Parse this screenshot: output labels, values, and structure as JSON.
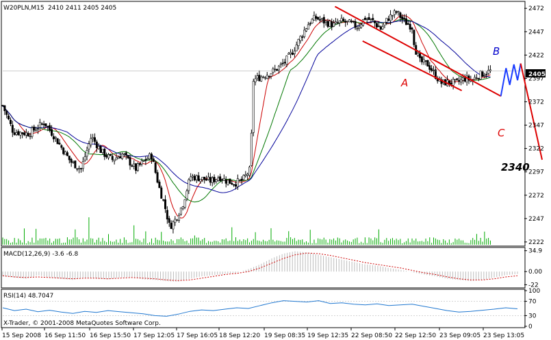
{
  "header": {
    "symbol_label": "W20PLN,M15",
    "ohlc_label": "2410 2411 2405 2405",
    "macd_label": "MACD(12,26,9) -3.6 -6.8",
    "rsi_label": "RSI(14) 48.7047",
    "copyright": "X-Trader, © 2001-2008 MetaQuotes Software Corp."
  },
  "annotations": {
    "a": "A",
    "b": "B",
    "c": "C",
    "target": "2340"
  },
  "colors": {
    "background": "#ffffff",
    "candle": "#000000",
    "ma_fast": "#cc0000",
    "ma_mid": "#007700",
    "ma_slow": "#000099",
    "annotation_red": "#dd0000",
    "annotation_blue": "#0000cc",
    "wave_blue": "#1a3cff",
    "volume": "#00aa00",
    "rsi": "#1f77d0",
    "macd_hist": "#bbbbbb",
    "macd_signal": "#cc0000",
    "current_price_bg": "#000000"
  },
  "chart_data": [
    {
      "type": "candlestick",
      "panel": "price",
      "title": "W20PLN,M15",
      "y_ticks": [
        2472,
        2447,
        2422,
        2397,
        2372,
        2347,
        2322,
        2297,
        2272,
        2247,
        2222
      ],
      "ylim": [
        2219,
        2478
      ],
      "current_price": 2405,
      "current_price_label": "2405",
      "x_tick_labels": [
        "15 Sep 2008",
        "16 Sep 11:50",
        "16 Sep 15:50",
        "17 Sep 12:05",
        "17 Sep 16:05",
        "18 Sep 12:20",
        "19 Sep 08:35",
        "19 Sep 12:35",
        "22 Sep 08:50",
        "22 Sep 12:50",
        "23 Sep 09:05",
        "23 Sep 13:05"
      ],
      "close_path": [
        [
          0,
          2368
        ],
        [
          0.02,
          2340
        ],
        [
          0.05,
          2338
        ],
        [
          0.08,
          2350
        ],
        [
          0.1,
          2334
        ],
        [
          0.13,
          2308
        ],
        [
          0.15,
          2300
        ],
        [
          0.17,
          2335
        ],
        [
          0.19,
          2318
        ],
        [
          0.21,
          2310
        ],
        [
          0.23,
          2316
        ],
        [
          0.255,
          2300
        ],
        [
          0.27,
          2308
        ],
        [
          0.285,
          2315
        ],
        [
          0.3,
          2280
        ],
        [
          0.31,
          2262
        ],
        [
          0.32,
          2238
        ],
        [
          0.33,
          2245
        ],
        [
          0.345,
          2262
        ],
        [
          0.36,
          2292
        ],
        [
          0.38,
          2290
        ],
        [
          0.4,
          2287
        ],
        [
          0.415,
          2292
        ],
        [
          0.43,
          2287
        ],
        [
          0.445,
          2285
        ],
        [
          0.46,
          2288
        ],
        [
          0.475,
          2300
        ],
        [
          0.48,
          2395
        ],
        [
          0.5,
          2400
        ],
        [
          0.52,
          2405
        ],
        [
          0.54,
          2414
        ],
        [
          0.555,
          2425
        ],
        [
          0.57,
          2440
        ],
        [
          0.585,
          2455
        ],
        [
          0.595,
          2460
        ],
        [
          0.6,
          2462
        ],
        [
          0.615,
          2458
        ],
        [
          0.635,
          2454
        ],
        [
          0.65,
          2458
        ],
        [
          0.665,
          2456
        ],
        [
          0.68,
          2452
        ],
        [
          0.695,
          2462
        ],
        [
          0.71,
          2458
        ],
        [
          0.725,
          2450
        ],
        [
          0.74,
          2462
        ],
        [
          0.755,
          2468
        ],
        [
          0.77,
          2458
        ],
        [
          0.785,
          2452
        ],
        [
          0.79,
          2430
        ],
        [
          0.8,
          2415
        ],
        [
          0.815,
          2412
        ],
        [
          0.83,
          2400
        ],
        [
          0.84,
          2392
        ],
        [
          0.855,
          2393
        ],
        [
          0.87,
          2392
        ],
        [
          0.885,
          2397
        ],
        [
          0.9,
          2395
        ],
        [
          0.91,
          2400
        ],
        [
          0.92,
          2402
        ],
        [
          0.935,
          2405
        ]
      ],
      "moving_averages": [
        "red",
        "green",
        "blue"
      ],
      "annotations": [
        {
          "text": "A",
          "price": 2390,
          "color": "red"
        },
        {
          "text": "B",
          "price": 2428,
          "color": "blue"
        },
        {
          "text": "C",
          "price": 2337,
          "color": "red"
        },
        {
          "text": "2340",
          "price": 2306,
          "color": "black"
        }
      ]
    },
    {
      "type": "bar",
      "panel": "volume",
      "series_name": "volume",
      "note": "green volume bars along the bottom of the price panel"
    },
    {
      "type": "bar",
      "panel": "macd",
      "title": "MACD(12,26,9) -3.6 -6.8",
      "y_ticks": [
        34.9,
        0.0,
        -22
      ],
      "ylim": [
        -25,
        38
      ],
      "series": [
        {
          "name": "MACD",
          "values": [
            -8,
            -10,
            -12,
            -6,
            -10,
            -12,
            -14,
            -10,
            -12,
            -13,
            -10,
            -9,
            -13,
            -14,
            -16,
            -17,
            -12,
            -8,
            -6,
            -4,
            -2,
            4,
            12,
            22,
            30,
            34,
            32,
            28,
            24,
            20,
            16,
            12,
            10,
            6,
            3,
            -1,
            -5,
            -8,
            -12,
            -14,
            -16,
            -14,
            -10,
            -6,
            -4
          ]
        },
        {
          "name": "Signal",
          "values": [
            -7,
            -9,
            -10,
            -9,
            -10,
            -11,
            -12,
            -11,
            -11,
            -12,
            -11,
            -10,
            -11,
            -12,
            -14,
            -15,
            -14,
            -11,
            -8,
            -5,
            -3,
            0,
            6,
            14,
            22,
            28,
            31,
            30,
            27,
            23,
            19,
            15,
            12,
            9,
            6,
            2,
            -2,
            -5,
            -9,
            -12,
            -14,
            -14,
            -12,
            -9,
            -7
          ]
        }
      ]
    },
    {
      "type": "line",
      "panel": "rsi",
      "title": "RSI(14) 48.7047",
      "y_ticks": [
        100,
        70,
        30,
        0
      ],
      "ylim": [
        0,
        100
      ],
      "series": [
        {
          "name": "RSI(14)",
          "values": [
            52,
            44,
            48,
            41,
            45,
            40,
            36,
            42,
            39,
            44,
            41,
            38,
            35,
            30,
            28,
            34,
            42,
            46,
            44,
            48,
            52,
            50,
            58,
            66,
            72,
            70,
            68,
            72,
            64,
            66,
            62,
            60,
            63,
            58,
            60,
            62,
            56,
            50,
            44,
            40,
            42,
            45,
            48,
            52,
            49
          ]
        }
      ]
    }
  ]
}
